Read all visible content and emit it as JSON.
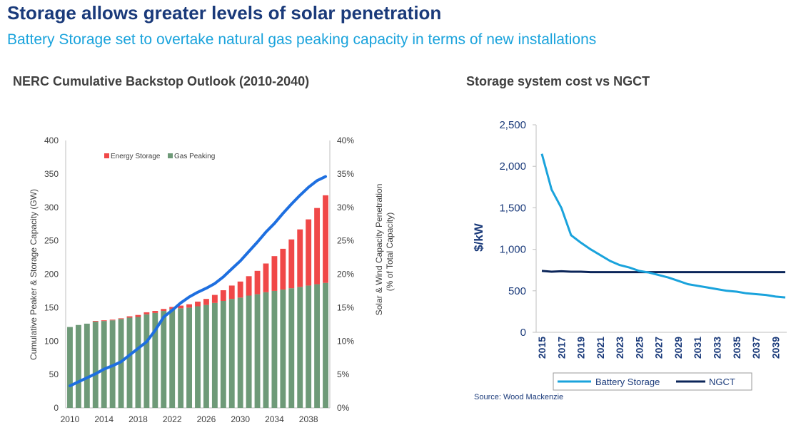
{
  "header": {
    "title": "Storage allows greater levels of solar penetration",
    "subtitle": "Battery Storage set to overtake natural gas peaking capacity in terms of new installations"
  },
  "source": "Source: Wood Mackenzie",
  "colors": {
    "title": "#1a3a7a",
    "subtitle": "#1aa3dc",
    "energy_storage": "#f04848",
    "gas_peaking": "#6e9a78",
    "penetration_line": "#1e6fe0",
    "battery": "#1aa3dc",
    "ngct": "#0b2559"
  },
  "chart_data": [
    {
      "type": "bar",
      "title": "NERC Cumulative Backstop Outlook (2010-2040)",
      "stacked": true,
      "ylabel": "Cumulative Peaker & Storage Capacity (GW)",
      "y2label": [
        "Solar & Wind Capacity Penetration",
        "(% of Total Capacity)"
      ],
      "ylim": [
        0,
        400
      ],
      "y2lim": [
        0,
        40
      ],
      "yticks": [
        "0",
        "50",
        "100",
        "150",
        "200",
        "250",
        "300",
        "350",
        "400"
      ],
      "y2ticks": [
        "0%",
        "5%",
        "10%",
        "15%",
        "20%",
        "25%",
        "30%",
        "35%",
        "40%"
      ],
      "x": [
        2010,
        2011,
        2012,
        2013,
        2014,
        2015,
        2016,
        2017,
        2018,
        2019,
        2020,
        2021,
        2022,
        2023,
        2024,
        2025,
        2026,
        2027,
        2028,
        2029,
        2030,
        2031,
        2032,
        2033,
        2034,
        2035,
        2036,
        2037,
        2038,
        2039,
        2040
      ],
      "xticks": [
        "2010",
        "2014",
        "2018",
        "2022",
        "2026",
        "2030",
        "2034",
        "2038"
      ],
      "legend": [
        "Energy Storage",
        "Gas Peaking"
      ],
      "series": [
        {
          "name": "Gas Peaking",
          "values": [
            121,
            124,
            126,
            129,
            130,
            131,
            133,
            135,
            136,
            140,
            142,
            145,
            148,
            149,
            150,
            152,
            154,
            157,
            160,
            163,
            165,
            168,
            170,
            173,
            175,
            177,
            179,
            181,
            183,
            185,
            187
          ]
        },
        {
          "name": "Energy Storage",
          "values": [
            0,
            0,
            0,
            1,
            1,
            1,
            1,
            2,
            3,
            3,
            3,
            3,
            3,
            4,
            5,
            7,
            9,
            12,
            16,
            20,
            24,
            29,
            35,
            43,
            52,
            61,
            73,
            86,
            99,
            114,
            131
          ]
        },
        {
          "name": "Solar & Wind Capacity Penetration (%)",
          "axis": "right",
          "values": [
            3.3,
            3.9,
            4.5,
            5.1,
            5.8,
            6.3,
            6.9,
            7.9,
            8.9,
            9.9,
            11.6,
            13.6,
            14.6,
            15.7,
            16.6,
            17.3,
            17.9,
            18.6,
            19.6,
            20.8,
            22.0,
            23.4,
            24.8,
            26.3,
            27.6,
            29.1,
            30.5,
            31.8,
            33.0,
            34.0,
            34.6
          ]
        }
      ]
    },
    {
      "type": "line",
      "title": "Storage system cost vs NGCT",
      "ylabel": "$/kW",
      "ylim": [
        0,
        2500
      ],
      "yticks": [
        "0",
        "500",
        "1,000",
        "1,500",
        "2,000",
        "2,500"
      ],
      "x": [
        2015,
        2016,
        2017,
        2018,
        2019,
        2020,
        2021,
        2022,
        2023,
        2024,
        2025,
        2026,
        2027,
        2028,
        2029,
        2030,
        2031,
        2032,
        2033,
        2034,
        2035,
        2036,
        2037,
        2038,
        2039,
        2040
      ],
      "xticks": [
        "2015",
        "2017",
        "2019",
        "2021",
        "2023",
        "2025",
        "2027",
        "2029",
        "2031",
        "2033",
        "2035",
        "2037",
        "2039"
      ],
      "series": [
        {
          "name": "Battery Storage",
          "values": [
            2150,
            1720,
            1500,
            1170,
            1080,
            1000,
            930,
            860,
            810,
            780,
            740,
            720,
            690,
            660,
            620,
            580,
            560,
            540,
            520,
            500,
            490,
            470,
            460,
            450,
            430,
            420
          ]
        },
        {
          "name": "NGCT",
          "values": [
            740,
            730,
            735,
            730,
            730,
            725,
            725,
            725,
            725,
            725,
            725,
            725,
            725,
            725,
            725,
            725,
            725,
            725,
            725,
            725,
            725,
            725,
            725,
            725,
            725,
            725
          ]
        }
      ]
    }
  ]
}
